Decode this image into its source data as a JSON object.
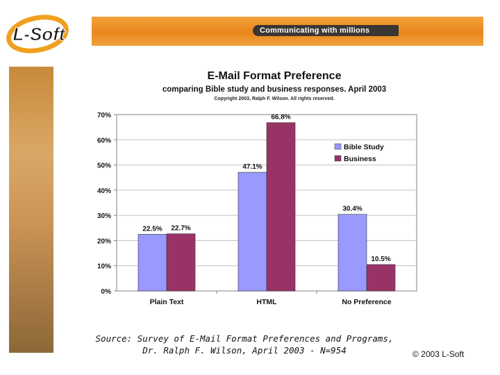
{
  "header": {
    "logo_text": "L-Soft",
    "tagline": "Communicating with millions"
  },
  "chart_data": {
    "type": "bar",
    "title": "E-Mail Format Preference",
    "subtitle": "comparing Bible study and business responses. April 2003",
    "note": "Copyright 2003, Ralph F. Wilson. All rights reserved.",
    "categories": [
      "Plain Text",
      "HTML",
      "No Preference"
    ],
    "series": [
      {
        "name": "Bible Study",
        "values": [
          22.5,
          47.1,
          30.4
        ],
        "labels": [
          "22.5%",
          "47.1%",
          "30.4%"
        ],
        "color": "#9999ff"
      },
      {
        "name": "Business",
        "values": [
          22.7,
          66.8,
          10.5
        ],
        "labels": [
          "22.7%",
          "66.8%",
          "10.5%"
        ],
        "color": "#993366"
      }
    ],
    "ylim": [
      0,
      70
    ],
    "yticks": [
      "0%",
      "10%",
      "20%",
      "30%",
      "40%",
      "50%",
      "60%",
      "70%"
    ],
    "legend": "right",
    "grid": true
  },
  "footer": {
    "source_line1": "Source: Survey of E-Mail Format Preferences and Programs,",
    "source_line2": "Dr. Ralph F. Wilson, April 2003 - N=954",
    "copyright": "© 2003 L-Soft"
  }
}
